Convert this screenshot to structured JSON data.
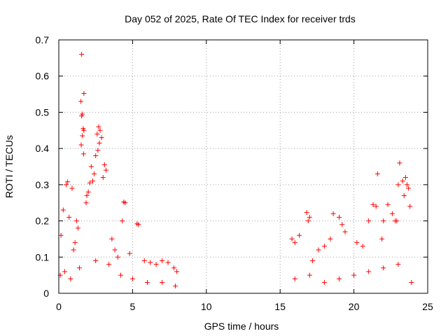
{
  "chart_data": {
    "type": "scatter",
    "title": "Day 052 of 2025, Rate Of TEC Index for receiver trds",
    "xlabel": "GPS time / hours",
    "ylabel": "ROTI / TECUs",
    "xlim": [
      0,
      25
    ],
    "ylim": [
      0,
      0.7
    ],
    "x_ticks": [
      "0",
      "5",
      "10",
      "15",
      "20",
      "25"
    ],
    "y_ticks": [
      "0",
      "0.1",
      "0.2",
      "0.3",
      "0.4",
      "0.5",
      "0.6",
      "0.7"
    ],
    "grid": true,
    "marker": "plus",
    "color": "#ff0000",
    "series": [
      {
        "x": [
          1.55,
          1.7,
          1.5,
          1.6,
          1.55,
          1.65,
          1.7,
          1.6,
          1.52,
          1.68,
          2.7,
          2.8,
          2.6,
          2.9,
          2.75,
          2.65,
          2.5,
          3.1,
          3.2,
          3.0,
          2.2,
          2.4,
          2.3,
          2.1,
          2.0,
          1.9,
          1.85,
          0.6,
          0.5,
          0.3,
          0.15,
          0.9,
          0.7,
          1.2,
          1.3,
          1.1,
          1.0,
          4.4,
          4.5,
          4.3,
          5.3,
          5.4,
          3.6,
          3.8,
          4.0,
          4.8,
          5.8,
          6.2,
          6.6,
          7.0,
          7.4,
          7.8,
          8.0,
          16.8,
          17.0,
          16.9,
          15.8,
          16.3,
          16.0,
          18.6,
          19.0,
          19.2,
          19.4,
          18.4,
          18.0,
          17.6,
          17.2,
          20.2,
          20.6,
          21.0,
          21.3,
          21.6,
          21.5,
          22.0,
          22.3,
          22.6,
          22.8,
          23.0,
          23.1,
          23.3,
          23.4,
          23.5,
          23.6,
          23.7,
          23.8,
          22.9,
          21.9,
          0.1,
          0.4,
          0.8,
          1.4,
          2.5,
          3.4,
          4.2,
          5.0,
          6.0,
          7.0,
          7.9,
          16.0,
          17.0,
          18.0,
          19.0,
          20.0,
          21.0,
          22.0,
          23.0,
          23.9
        ],
        "y": [
          0.66,
          0.552,
          0.53,
          0.495,
          0.49,
          0.455,
          0.45,
          0.435,
          0.41,
          0.385,
          0.46,
          0.45,
          0.44,
          0.43,
          0.415,
          0.395,
          0.38,
          0.355,
          0.34,
          0.32,
          0.35,
          0.33,
          0.31,
          0.305,
          0.28,
          0.27,
          0.25,
          0.308,
          0.3,
          0.23,
          0.16,
          0.29,
          0.21,
          0.2,
          0.18,
          0.14,
          0.12,
          0.252,
          0.25,
          0.2,
          0.192,
          0.19,
          0.15,
          0.12,
          0.1,
          0.11,
          0.09,
          0.085,
          0.08,
          0.09,
          0.085,
          0.07,
          0.06,
          0.223,
          0.21,
          0.2,
          0.15,
          0.16,
          0.14,
          0.22,
          0.21,
          0.19,
          0.17,
          0.15,
          0.13,
          0.12,
          0.09,
          0.14,
          0.13,
          0.2,
          0.245,
          0.33,
          0.24,
          0.2,
          0.245,
          0.22,
          0.2,
          0.3,
          0.36,
          0.31,
          0.27,
          0.32,
          0.3,
          0.29,
          0.24,
          0.2,
          0.15,
          0.05,
          0.06,
          0.04,
          0.07,
          0.09,
          0.08,
          0.05,
          0.04,
          0.03,
          0.03,
          0.02,
          0.04,
          0.05,
          0.03,
          0.04,
          0.05,
          0.06,
          0.07,
          0.08,
          0.03
        ]
      }
    ]
  }
}
